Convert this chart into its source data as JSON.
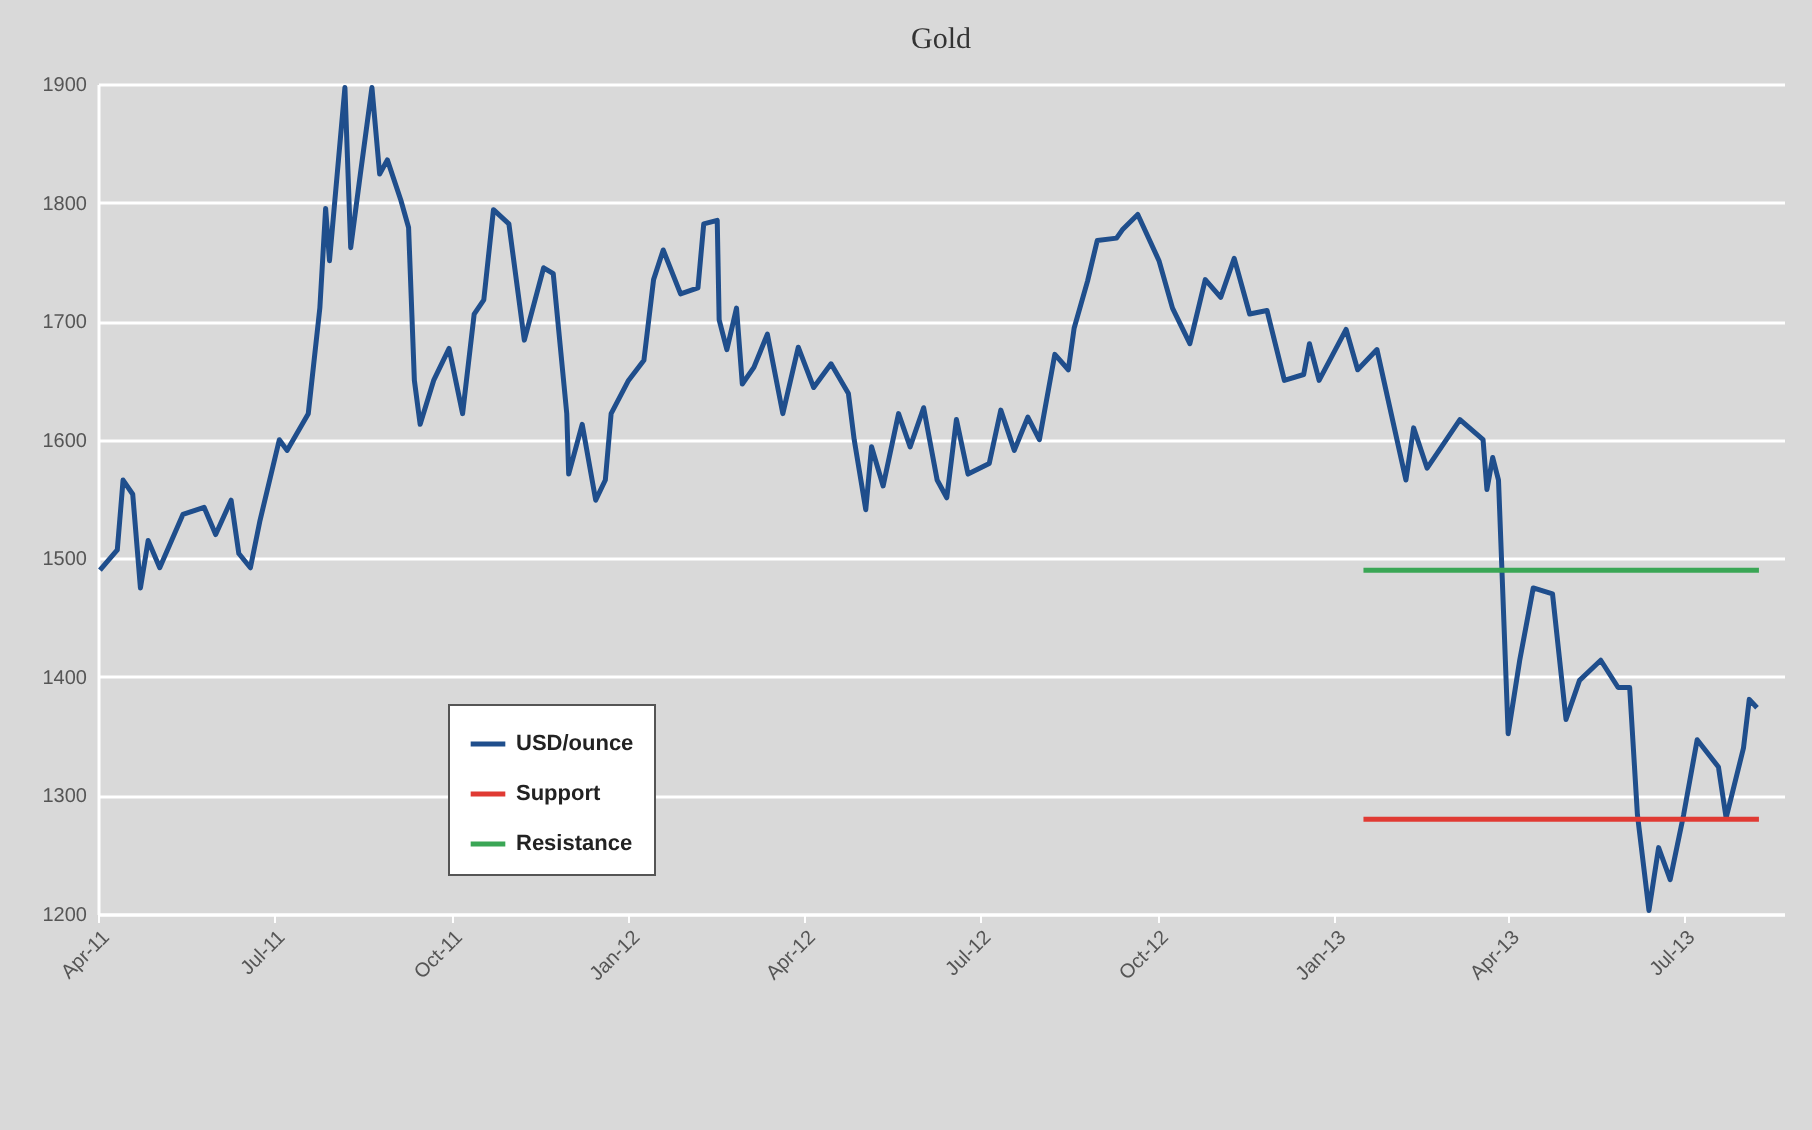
{
  "chart_data": {
    "type": "line",
    "title": "Gold",
    "x": [
      "2011-04-02",
      "2011-04-11",
      "2011-04-14",
      "2011-04-19",
      "2011-04-23",
      "2011-04-27",
      "2011-05-03",
      "2011-05-15",
      "2011-05-26",
      "2011-06-01",
      "2011-06-09",
      "2011-06-13",
      "2011-06-19",
      "2011-06-24",
      "2011-07-04",
      "2011-07-08",
      "2011-07-19",
      "2011-07-25",
      "2011-07-28",
      "2011-07-30",
      "2011-08-07",
      "2011-08-10",
      "2011-08-15",
      "2011-08-21",
      "2011-08-25",
      "2011-08-29",
      "2011-09-05",
      "2011-09-09",
      "2011-09-12",
      "2011-09-15",
      "2011-09-22",
      "2011-09-30",
      "2011-10-07",
      "2011-10-13",
      "2011-10-18",
      "2011-10-23",
      "2011-10-31",
      "2011-11-08",
      "2011-11-18",
      "2011-11-23",
      "2011-11-30",
      "2011-12-01",
      "2011-12-08",
      "2011-12-15",
      "2011-12-20",
      "2011-12-23",
      "2012-01-01",
      "2012-01-09",
      "2012-01-14",
      "2012-01-19",
      "2012-01-28",
      "2012-02-06",
      "2012-02-09",
      "2012-02-16",
      "2012-02-17",
      "2012-02-21",
      "2012-02-26",
      "2012-02-29",
      "2012-03-06",
      "2012-03-13",
      "2012-03-21",
      "2012-03-29",
      "2012-04-06",
      "2012-04-15",
      "2012-04-24",
      "2012-04-27",
      "2012-05-03",
      "2012-05-06",
      "2012-05-12",
      "2012-05-20",
      "2012-05-26",
      "2012-06-02",
      "2012-06-09",
      "2012-06-14",
      "2012-06-19",
      "2012-06-25",
      "2012-07-06",
      "2012-07-12",
      "2012-07-19",
      "2012-07-26",
      "2012-08-01",
      "2012-08-09",
      "2012-08-16",
      "2012-08-19",
      "2012-08-26",
      "2012-08-31",
      "2012-09-10",
      "2012-09-13",
      "2012-09-21",
      "2012-10-02",
      "2012-10-09",
      "2012-10-18",
      "2012-10-26",
      "2012-11-03",
      "2012-11-10",
      "2012-11-18",
      "2012-11-27",
      "2012-12-06",
      "2012-12-16",
      "2012-12-19",
      "2012-12-24",
      "2013-01-07",
      "2013-01-13",
      "2013-01-23",
      "2013-02-01",
      "2013-02-07",
      "2013-02-11",
      "2013-02-18",
      "2013-03-07",
      "2013-03-19",
      "2013-03-21",
      "2013-03-24",
      "2013-03-27",
      "2013-04-01",
      "2013-04-07",
      "2013-04-14",
      "2013-04-24",
      "2013-05-01",
      "2013-05-08",
      "2013-05-19",
      "2013-05-28",
      "2013-06-03",
      "2013-06-07",
      "2013-06-13",
      "2013-06-18",
      "2013-06-24",
      "2013-07-01",
      "2013-07-08",
      "2013-07-19",
      "2013-07-23",
      "2013-08-01",
      "2013-08-04",
      "2013-08-08"
    ],
    "series": [
      {
        "name": "USD/ounce",
        "color": "#1f4e8c",
        "values": [
          1490,
          1507,
          1566,
          1554,
          1475,
          1515,
          1492,
          1537,
          1543,
          1520,
          1549,
          1504,
          1492,
          1532,
          1600,
          1591,
          1622,
          1711,
          1795,
          1751,
          1897,
          1762,
          1824,
          1897,
          1824,
          1836,
          1802,
          1779,
          1650,
          1613,
          1650,
          1677,
          1622,
          1706,
          1718,
          1794,
          1782,
          1684,
          1745,
          1740,
          1622,
          1571,
          1613,
          1549,
          1566,
          1622,
          1650,
          1667,
          1735,
          1760,
          1723,
          1728,
          1782,
          1785,
          1701,
          1676,
          1711,
          1647,
          1661,
          1689,
          1622,
          1678,
          1644,
          1664,
          1639,
          1600,
          1541,
          1594,
          1561,
          1622,
          1594,
          1627,
          1566,
          1551,
          1617,
          1571,
          1580,
          1625,
          1591,
          1619,
          1600,
          1672,
          1659,
          1694,
          1734,
          1768,
          1770,
          1777,
          1790,
          1751,
          1711,
          1681,
          1735,
          1720,
          1753,
          1706,
          1709,
          1650,
          1655,
          1681,
          1650,
          1693,
          1659,
          1676,
          1610,
          1566,
          1610,
          1576,
          1617,
          1600,
          1558,
          1585,
          1566,
          1352,
          1414,
          1475,
          1470,
          1364,
          1397,
          1414,
          1391,
          1391,
          1284,
          1203,
          1256,
          1229,
          1284,
          1347,
          1324,
          1281,
          1340,
          1381,
          1374
        ]
      },
      {
        "name": "Support",
        "color": "#e03a33",
        "type": "line",
        "x": [
          "2013-01-16",
          "2013-08-09"
        ],
        "values": [
          1280,
          1280
        ]
      },
      {
        "name": "Resistance",
        "color": "#3aa655",
        "type": "line",
        "x": [
          "2013-01-16",
          "2013-08-09"
        ],
        "values": [
          1490,
          1490
        ]
      }
    ],
    "xlim": [
      "2011-04-01",
      "2013-08-22"
    ],
    "xticks": [
      {
        "value": "2011-04-01",
        "label": "Apr-11"
      },
      {
        "value": "2011-07-01",
        "label": "Jul-11"
      },
      {
        "value": "2011-10-01",
        "label": "Oct-11"
      },
      {
        "value": "2012-01-01",
        "label": "Jan-12"
      },
      {
        "value": "2012-04-01",
        "label": "Apr-12"
      },
      {
        "value": "2012-07-01",
        "label": "Jul-12"
      },
      {
        "value": "2012-10-01",
        "label": "Oct-12"
      },
      {
        "value": "2013-01-01",
        "label": "Jan-13"
      },
      {
        "value": "2013-04-01",
        "label": "Apr-13"
      },
      {
        "value": "2013-07-01",
        "label": "Jul-13"
      }
    ],
    "ylim": [
      1200,
      1900
    ],
    "yticks": [
      1200,
      1300,
      1400,
      1500,
      1600,
      1700,
      1800,
      1900
    ],
    "grid": "y",
    "legend": "bottom left",
    "marker": "none",
    "line_style": "solid"
  }
}
